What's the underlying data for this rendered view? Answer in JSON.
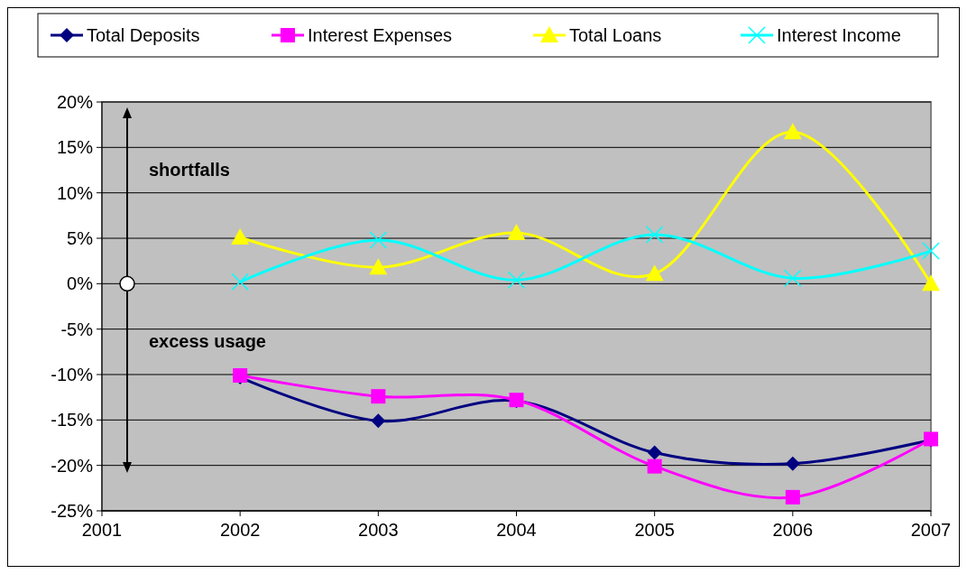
{
  "chart_data": {
    "type": "line",
    "x": [
      2002,
      2003,
      2004,
      2005,
      2006,
      2007
    ],
    "xlim": [
      2001,
      2007
    ],
    "xticks": [
      2001,
      2002,
      2003,
      2004,
      2005,
      2006,
      2007
    ],
    "ylim": [
      -25,
      20
    ],
    "yticks": [
      {
        "value": -25,
        "label": "-25%"
      },
      {
        "value": -20,
        "label": "-20%"
      },
      {
        "value": -15,
        "label": "-15%"
      },
      {
        "value": -10,
        "label": "-10%"
      },
      {
        "value": -5,
        "label": "-5%"
      },
      {
        "value": 0,
        "label": "0%"
      },
      {
        "value": 5,
        "label": "5%"
      },
      {
        "value": 10,
        "label": "10%"
      },
      {
        "value": 15,
        "label": "15%"
      },
      {
        "value": 20,
        "label": "20%"
      }
    ],
    "grid": "y",
    "legend": "top",
    "series": [
      {
        "name": "Total Deposits",
        "color": "#000080",
        "marker": "diamond",
        "values": [
          -10.3,
          -15.1,
          -12.9,
          -18.6,
          -19.8,
          -17.2
        ]
      },
      {
        "name": "Interest Expenses",
        "color": "#ff00ff",
        "marker": "square",
        "values": [
          -10.1,
          -12.4,
          -12.8,
          -20.1,
          -23.5,
          -17.1
        ]
      },
      {
        "name": "Total Loans",
        "color": "#ffff00",
        "marker": "triangle",
        "values": [
          5.1,
          1.8,
          5.6,
          1.1,
          16.7,
          0
        ]
      },
      {
        "name": "Interest Income",
        "color": "#00ffff",
        "marker": "cross",
        "values": [
          0.2,
          4.8,
          0.4,
          5.4,
          0.6,
          3.6
        ]
      }
    ],
    "annotations": [
      "shortfalls",
      "excess usage"
    ]
  }
}
